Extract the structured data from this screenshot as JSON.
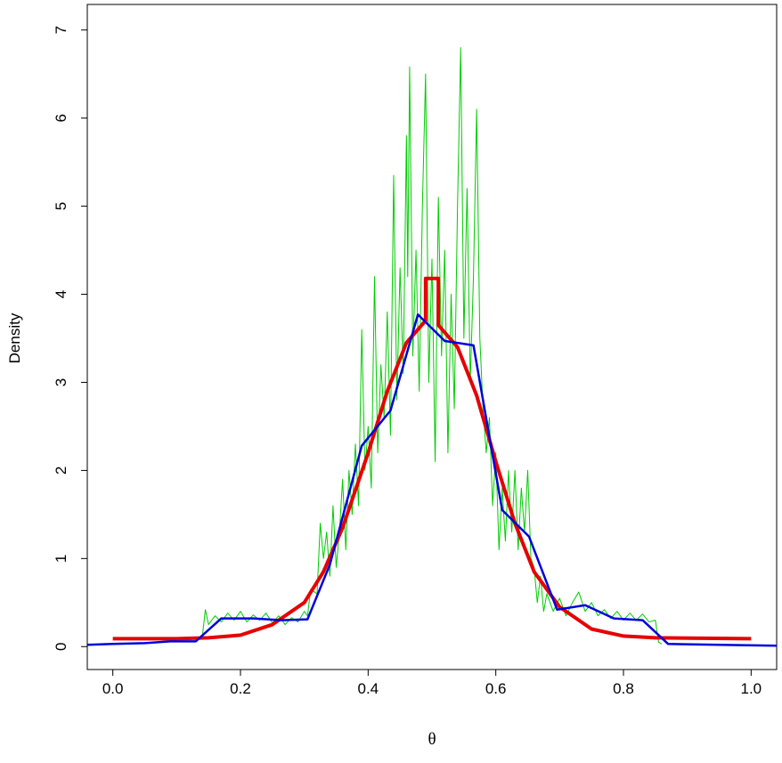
{
  "chart_data": {
    "type": "line",
    "x_label": "θ",
    "y_label": "Density",
    "xlim": [
      -0.04,
      1.04
    ],
    "ylim": [
      -0.26,
      7.29
    ],
    "xticks": [
      {
        "value": 0,
        "label": "0.0"
      },
      0.2,
      0.4,
      0.6,
      0.8,
      {
        "value": 1,
        "label": "1.0"
      }
    ],
    "yticks": [
      0,
      1,
      2,
      3,
      4,
      5,
      6,
      7
    ],
    "series": [
      {
        "color": "#00cc00",
        "width": 1,
        "x": [
          0.14,
          0.145,
          0.15,
          0.16,
          0.17,
          0.18,
          0.19,
          0.2,
          0.21,
          0.22,
          0.23,
          0.24,
          0.25,
          0.26,
          0.27,
          0.28,
          0.29,
          0.3,
          0.305,
          0.31,
          0.32,
          0.325,
          0.33,
          0.335,
          0.34,
          0.345,
          0.35,
          0.355,
          0.36,
          0.365,
          0.37,
          0.375,
          0.38,
          0.385,
          0.39,
          0.395,
          0.4,
          0.405,
          0.41,
          0.415,
          0.42,
          0.425,
          0.43,
          0.435,
          0.44,
          0.445,
          0.45,
          0.455,
          0.46,
          0.462,
          0.465,
          0.47,
          0.475,
          0.48,
          0.485,
          0.49,
          0.495,
          0.5,
          0.505,
          0.51,
          0.515,
          0.52,
          0.525,
          0.53,
          0.535,
          0.54,
          0.545,
          0.55,
          0.555,
          0.56,
          0.565,
          0.57,
          0.575,
          0.58,
          0.585,
          0.59,
          0.595,
          0.6,
          0.605,
          0.61,
          0.615,
          0.62,
          0.625,
          0.63,
          0.635,
          0.64,
          0.645,
          0.65,
          0.655,
          0.66,
          0.665,
          0.67,
          0.675,
          0.68,
          0.69,
          0.7,
          0.71,
          0.72,
          0.73,
          0.74,
          0.75,
          0.76,
          0.77,
          0.78,
          0.79,
          0.8,
          0.81,
          0.82,
          0.83,
          0.84,
          0.85,
          0.855,
          0.86
        ],
        "values": [
          0.1,
          0.42,
          0.25,
          0.35,
          0.28,
          0.38,
          0.3,
          0.4,
          0.28,
          0.36,
          0.3,
          0.38,
          0.27,
          0.35,
          0.25,
          0.33,
          0.28,
          0.4,
          0.35,
          0.65,
          0.6,
          1.4,
          1.0,
          1.3,
          0.8,
          1.6,
          0.9,
          1.3,
          1.9,
          1.1,
          2.0,
          1.5,
          2.3,
          1.6,
          3.6,
          2.0,
          2.5,
          1.8,
          4.2,
          2.2,
          3.2,
          2.6,
          3.8,
          2.4,
          5.35,
          2.8,
          4.3,
          3.1,
          5.8,
          4.2,
          6.58,
          3.3,
          4.5,
          2.9,
          5.0,
          6.5,
          3.0,
          4.4,
          2.1,
          5.1,
          3.3,
          4.5,
          2.2,
          4.0,
          2.7,
          5.0,
          6.8,
          3.5,
          5.2,
          3.0,
          4.2,
          6.1,
          3.5,
          2.7,
          2.2,
          2.6,
          1.6,
          2.2,
          1.1,
          1.8,
          1.2,
          2.0,
          1.3,
          2.0,
          1.1,
          1.8,
          1.3,
          2.0,
          1.0,
          0.9,
          0.5,
          0.8,
          0.4,
          0.6,
          0.4,
          0.55,
          0.35,
          0.5,
          0.62,
          0.4,
          0.5,
          0.35,
          0.42,
          0.32,
          0.4,
          0.3,
          0.38,
          0.3,
          0.37,
          0.28,
          0.3,
          0.05,
          0.03
        ]
      },
      {
        "color": "#e60000",
        "width": 4,
        "x": [
          0,
          0.1,
          0.15,
          0.2,
          0.25,
          0.3,
          0.33,
          0.36,
          0.4,
          0.43,
          0.46,
          0.49,
          0.49,
          0.51,
          0.51,
          0.54,
          0.57,
          0.6,
          0.63,
          0.66,
          0.7,
          0.75,
          0.8,
          0.85,
          1.0
        ],
        "values": [
          0.09,
          0.09,
          0.1,
          0.13,
          0.25,
          0.5,
          0.85,
          1.35,
          2.2,
          2.9,
          3.45,
          3.7,
          4.18,
          4.18,
          3.65,
          3.4,
          2.85,
          2.1,
          1.4,
          0.85,
          0.45,
          0.2,
          0.12,
          0.1,
          0.09
        ]
      },
      {
        "color": "#0000dd",
        "width": 2.5,
        "x": [
          -0.04,
          0.0,
          0.05,
          0.09,
          0.13,
          0.17,
          0.22,
          0.265,
          0.305,
          0.34,
          0.39,
          0.435,
          0.478,
          0.52,
          0.565,
          0.61,
          0.652,
          0.696,
          0.74,
          0.785,
          0.83,
          0.87,
          0.95,
          1.04
        ],
        "values": [
          0.02,
          0.03,
          0.04,
          0.06,
          0.06,
          0.32,
          0.32,
          0.3,
          0.31,
          0.93,
          2.28,
          2.68,
          3.77,
          3.47,
          3.42,
          1.55,
          1.25,
          0.42,
          0.47,
          0.32,
          0.3,
          0.03,
          0.02,
          0.01
        ]
      }
    ]
  }
}
